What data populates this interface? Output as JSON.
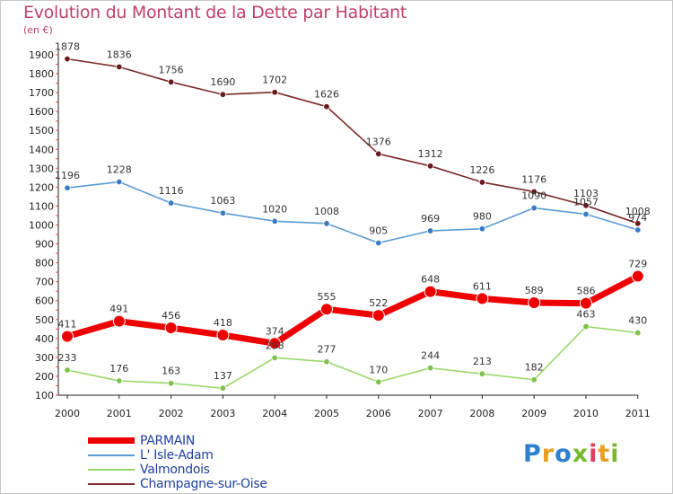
{
  "title": "Evolution du Montant de la Dette par Habitant",
  "unit_label": "(en €)",
  "brand": {
    "text": "Proxiti",
    "letters": [
      {
        "ch": "P",
        "color": "#2e7fd0"
      },
      {
        "ch": "r",
        "color": "#e8a020"
      },
      {
        "ch": "o",
        "color": "#2e7fd0"
      },
      {
        "ch": "x",
        "color": "#7ab82e"
      },
      {
        "ch": "i",
        "color": "#e04060"
      },
      {
        "ch": "t",
        "color": "#e8a020"
      },
      {
        "ch": "i",
        "color": "#7ab82e"
      }
    ]
  },
  "chart_data": {
    "type": "line",
    "title": "Evolution du Montant de la Dette par Habitant",
    "ylabel": "(en €)",
    "xlabel": "",
    "x": [
      "2000",
      "2001",
      "2002",
      "2003",
      "2004",
      "2005",
      "2006",
      "2007",
      "2008",
      "2009",
      "2010",
      "2011"
    ],
    "ylim": [
      100,
      1900
    ],
    "yticks": [
      100,
      200,
      300,
      400,
      500,
      600,
      700,
      800,
      900,
      1000,
      1100,
      1200,
      1300,
      1400,
      1500,
      1600,
      1700,
      1800,
      1900
    ],
    "grid": false,
    "legend_position": "bottom-left",
    "series": [
      {
        "name": "PARMAIN",
        "color": "#ee0000",
        "marker_color": "#ee0000",
        "bold": true,
        "values": [
          411,
          491,
          456,
          418,
          374,
          555,
          522,
          648,
          611,
          589,
          586,
          729
        ]
      },
      {
        "name": "L' Isle-Adam",
        "color": "#5b9bd5",
        "marker_color": "#3a7cc4",
        "bold": false,
        "values": [
          1196,
          1228,
          1116,
          1063,
          1020,
          1008,
          905,
          969,
          980,
          1090,
          1057,
          974
        ]
      },
      {
        "name": "Valmondois",
        "color": "#9ad86a",
        "marker_color": "#7dc24a",
        "bold": false,
        "values": [
          233,
          176,
          163,
          137,
          298,
          277,
          170,
          244,
          213,
          182,
          463,
          430
        ]
      },
      {
        "name": "Champagne-sur-Oise",
        "color": "#7a2a2a",
        "marker_color": "#6a1a1a",
        "bold": false,
        "values": [
          1878,
          1836,
          1756,
          1690,
          1702,
          1626,
          1376,
          1312,
          1226,
          1176,
          1103,
          1008
        ]
      }
    ]
  }
}
